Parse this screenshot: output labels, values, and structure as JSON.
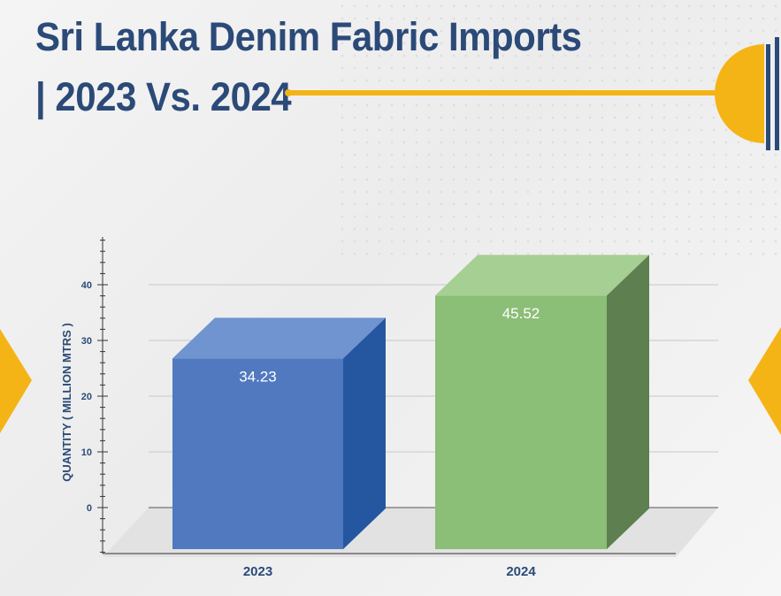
{
  "title": {
    "line1": "Sri Lanka Denim Fabric Imports",
    "line2": "| 2023 Vs. 2024"
  },
  "colors": {
    "title": "#2b4a78",
    "accent": "#f5b416",
    "bar_2023_front": "#5079bf",
    "bar_2024_front": "#8bbe76"
  },
  "chart_data": {
    "type": "bar",
    "categories": [
      "2023",
      "2024"
    ],
    "values": [
      34.23,
      45.52
    ],
    "data_labels": [
      "34.23",
      "45.52"
    ],
    "ylabel": "QUANTITY ( MILLION MTRS )",
    "yticks": [
      "0",
      "10",
      "20",
      "30",
      "40"
    ],
    "ylim": [
      0,
      50
    ],
    "grid": true,
    "style": "3d-box"
  }
}
